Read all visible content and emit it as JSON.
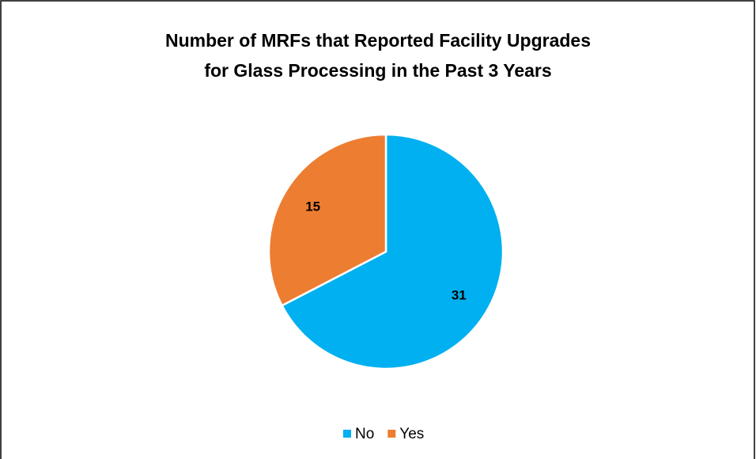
{
  "chart_data": {
    "type": "pie",
    "title": [
      "Number of MRFs that Reported Facility Upgrades",
      "for Glass Processing in the Past 3 Years"
    ],
    "categories": [
      "No",
      "Yes"
    ],
    "values": [
      31,
      15
    ],
    "colors": [
      "#00b0f0",
      "#ed7d31"
    ],
    "legend": "bottom"
  }
}
